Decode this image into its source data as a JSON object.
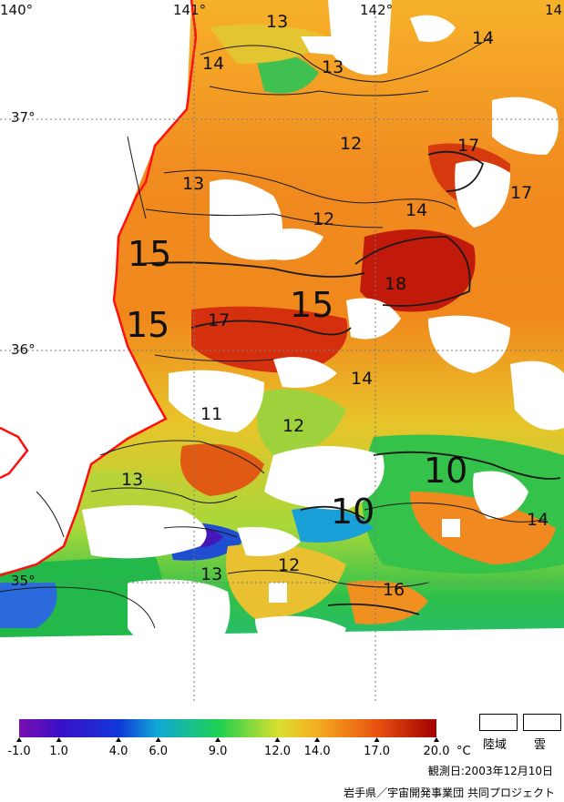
{
  "map": {
    "lon_ticks": [
      "140°",
      "141°",
      "142°",
      "14"
    ],
    "lat_ticks": [
      "37°",
      "36°",
      "35°"
    ],
    "isotherm_labels": [
      "13",
      "14",
      "13",
      "14",
      "12",
      "17",
      "13",
      "17",
      "12",
      "14",
      "15",
      "18",
      "15",
      "15",
      "17",
      "14",
      "11",
      "12",
      "10",
      "13",
      "10",
      "14",
      "13",
      "12",
      "16"
    ]
  },
  "colorbar": {
    "unit": "°C",
    "tick_labels": [
      "-1.0",
      "1.0",
      "4.0",
      "6.0",
      "9.0",
      "12.0",
      "14.0",
      "17.0",
      "20.0"
    ],
    "tick_values": [
      -1.0,
      1.0,
      4.0,
      6.0,
      9.0,
      12.0,
      14.0,
      17.0,
      20.0
    ],
    "range": [
      -1.0,
      20.0
    ]
  },
  "legend": {
    "land_label": "陸域",
    "cloud_label": "雲"
  },
  "observation_date": "観測日:2003年12月10日",
  "credit": "岩手県／宇宙開発事業団 共同プロジェクト",
  "colors": {
    "coast": "#ff0000",
    "t_low": "#7a0fb0",
    "t_mid": "#22cc44",
    "t_high": "#a30000"
  }
}
